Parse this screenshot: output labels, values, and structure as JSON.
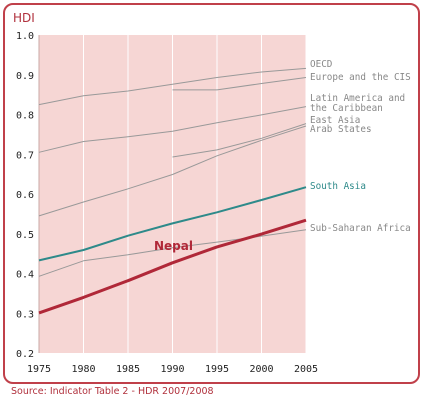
{
  "chart_data": {
    "type": "line",
    "title": "",
    "ylabel": "HDI",
    "xlabel": "",
    "x": [
      1975,
      1980,
      1985,
      1990,
      1995,
      2000,
      2005
    ],
    "xlim": [
      1975,
      2005
    ],
    "ylim": [
      0.2,
      1.0
    ],
    "yticks": [
      "0.2",
      "0.3",
      "0.4",
      "0.5",
      "0.6",
      "0.7",
      "0.8",
      "0.9",
      "1.0"
    ],
    "xticks": [
      "1975",
      "1980",
      "1985",
      "1990",
      "1995",
      "2000",
      "2005"
    ],
    "grid": "vertical lines at each x tick",
    "series": [
      {
        "name": "OECD",
        "color": "#999999",
        "x": [
          1975,
          1980,
          1985,
          1990,
          1995,
          2000,
          2005
        ],
        "values": [
          0.825,
          0.847,
          0.859,
          0.876,
          0.893,
          0.907,
          0.916
        ]
      },
      {
        "name": "Europe and the CIS",
        "color": "#999999",
        "x": [
          1990,
          1995,
          2000,
          2005
        ],
        "values": [
          0.862,
          0.862,
          0.878,
          0.893
        ]
      },
      {
        "name": "Latin America and the Caribbean",
        "color": "#999999",
        "x": [
          1975,
          1980,
          1985,
          1990,
          1995,
          2000,
          2005
        ],
        "values": [
          0.705,
          0.732,
          0.744,
          0.758,
          0.779,
          0.799,
          0.82
        ]
      },
      {
        "name": "East Asia",
        "color": "#999999",
        "x": [
          1975,
          1980,
          1985,
          1990,
          1995,
          2000,
          2005
        ],
        "values": [
          0.545,
          0.58,
          0.613,
          0.649,
          0.696,
          0.735,
          0.771
        ]
      },
      {
        "name": "Arab States",
        "color": "#999999",
        "x": [
          1990,
          1995,
          2000,
          2005
        ],
        "values": [
          0.693,
          0.711,
          0.74,
          0.777
        ]
      },
      {
        "name": "South Asia",
        "color": "#2e8a8a",
        "x": [
          1975,
          1980,
          1985,
          1990,
          1995,
          2000,
          2005
        ],
        "values": [
          0.433,
          0.459,
          0.495,
          0.526,
          0.554,
          0.585,
          0.617
        ]
      },
      {
        "name": "Sub-Saharan Africa",
        "color": "#999999",
        "x": [
          1975,
          1980,
          1985,
          1990,
          1995,
          2000,
          2005
        ],
        "values": [
          0.393,
          0.432,
          0.447,
          0.465,
          0.479,
          0.494,
          0.51
        ]
      },
      {
        "name": "Nepal",
        "color": "#b02838",
        "x": [
          1975,
          1980,
          1985,
          1990,
          1995,
          2000,
          2005
        ],
        "values": [
          0.301,
          0.34,
          0.382,
          0.427,
          0.467,
          0.499,
          0.534
        ]
      }
    ],
    "series_labels": {
      "OECD": "OECD",
      "Europe and the CIS": "Europe and the CIS",
      "Latin America and the Caribbean": [
        "Latin America and",
        "the Caribbean"
      ],
      "East Asia": "East Asia",
      "Arab States": "Arab States",
      "South Asia": "South Asia",
      "Sub-Saharan Africa": "Sub-Saharan Africa",
      "Nepal": "Nepal"
    },
    "source": "Source: Indicator Table 2 - HDR 2007/2008"
  },
  "colors": {
    "frame": "#c0404a",
    "plot_background": "#f6d6d4",
    "grid": "#ffffff"
  }
}
